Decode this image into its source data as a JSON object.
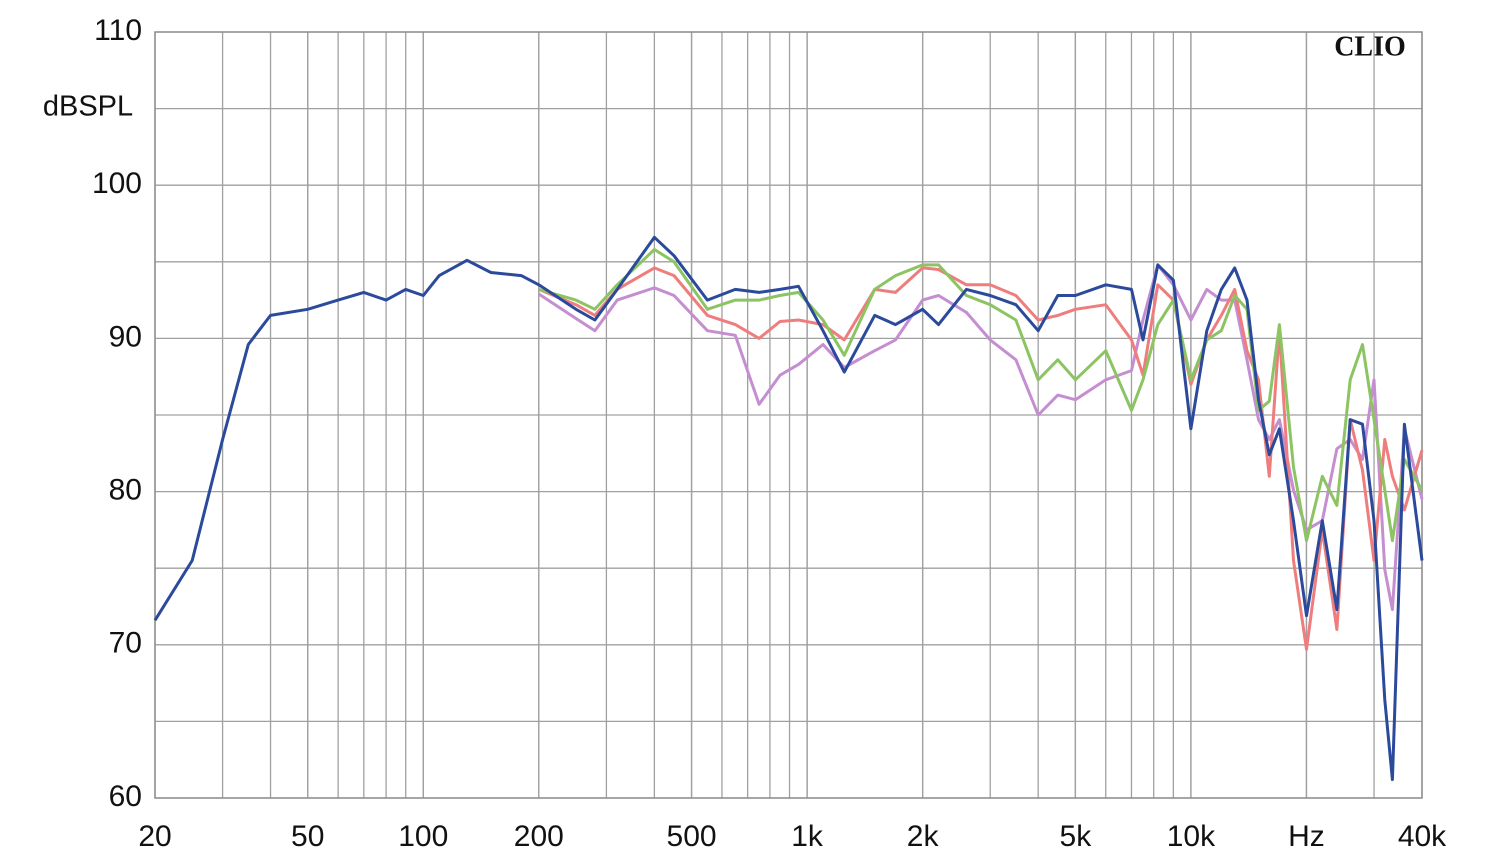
{
  "chart_data": {
    "type": "line",
    "y_label": "dBSPL",
    "annotation": "CLIO",
    "x": [
      20,
      25,
      30,
      35,
      40,
      50,
      60,
      70,
      80,
      90,
      100,
      110,
      130,
      150,
      180,
      200,
      250,
      280,
      320,
      400,
      450,
      550,
      650,
      750,
      850,
      950,
      1100,
      1250,
      1500,
      1700,
      2000,
      2200,
      2600,
      3000,
      3500,
      4000,
      4500,
      5000,
      6000,
      7000,
      7500,
      8200,
      9000,
      10000,
      11000,
      12000,
      13000,
      14000,
      15000,
      16000,
      17000,
      18500,
      20000,
      22000,
      24000,
      26000,
      28000,
      30000,
      32000,
      33500,
      36000,
      40000
    ],
    "series": [
      {
        "color": "#c58ed1",
        "values": [
          null,
          null,
          null,
          null,
          null,
          null,
          null,
          null,
          null,
          null,
          null,
          null,
          null,
          null,
          null,
          92.9,
          91.3,
          90.5,
          92.5,
          93.3,
          92.8,
          90.5,
          90.2,
          85.7,
          87.6,
          88.3,
          89.6,
          88.1,
          89.2,
          89.9,
          92.5,
          92.8,
          91.7,
          89.9,
          88.6,
          85.0,
          86.3,
          86.0,
          87.3,
          87.9,
          91.2,
          94.8,
          93.5,
          91.2,
          93.2,
          92.5,
          92.5,
          88.6,
          84.7,
          83.4,
          84.7,
          80.1,
          77.5,
          78.1,
          82.8,
          83.4,
          82.1,
          87.3,
          74.9,
          72.3,
          84.1,
          79.5
        ]
      },
      {
        "color": "#ef7d7d",
        "values": [
          null,
          null,
          null,
          null,
          null,
          null,
          null,
          null,
          null,
          null,
          null,
          null,
          null,
          null,
          null,
          93.2,
          92.2,
          91.5,
          93.2,
          94.6,
          94.1,
          91.5,
          90.9,
          90.0,
          91.1,
          91.2,
          90.9,
          89.9,
          93.2,
          93.0,
          94.6,
          94.5,
          93.5,
          93.5,
          92.8,
          91.2,
          91.5,
          91.9,
          92.2,
          89.9,
          87.6,
          93.5,
          92.5,
          87.0,
          89.9,
          91.5,
          93.2,
          89.2,
          87.3,
          81.0,
          90.5,
          75.5,
          69.7,
          77.5,
          71.0,
          84.7,
          81.4,
          75.5,
          83.4,
          81.0,
          78.8,
          82.7
        ]
      },
      {
        "color": "#8cc463",
        "values": [
          null,
          null,
          null,
          null,
          null,
          null,
          null,
          null,
          null,
          null,
          null,
          null,
          null,
          null,
          null,
          93.2,
          92.5,
          91.9,
          93.5,
          95.8,
          95.0,
          91.9,
          92.5,
          92.5,
          92.8,
          93.0,
          91.2,
          88.9,
          93.2,
          94.1,
          94.8,
          94.8,
          92.8,
          92.2,
          91.2,
          87.3,
          88.6,
          87.3,
          89.2,
          85.3,
          87.3,
          90.9,
          92.5,
          87.3,
          89.9,
          90.5,
          92.8,
          91.9,
          85.3,
          85.9,
          90.9,
          81.6,
          76.8,
          81.0,
          79.1,
          87.3,
          89.6,
          84.7,
          80.1,
          76.8,
          82.1,
          80.1
        ]
      },
      {
        "color": "#2b4a9c",
        "values": [
          71.6,
          75.5,
          83.4,
          89.6,
          91.5,
          91.9,
          92.5,
          93.0,
          92.5,
          93.2,
          92.8,
          94.1,
          95.1,
          94.3,
          94.1,
          93.5,
          91.9,
          91.2,
          93.2,
          96.6,
          95.4,
          92.5,
          93.2,
          93.0,
          93.2,
          93.4,
          90.5,
          87.8,
          91.5,
          90.9,
          91.9,
          90.9,
          93.2,
          92.8,
          92.2,
          90.5,
          92.8,
          92.8,
          93.5,
          93.2,
          89.9,
          94.8,
          93.8,
          84.1,
          90.5,
          93.2,
          94.6,
          92.5,
          86.0,
          82.4,
          84.1,
          78.1,
          71.9,
          78.1,
          72.3,
          84.7,
          84.4,
          78.1,
          66.4,
          61.2,
          84.4,
          75.5
        ]
      }
    ],
    "xlim": [
      20,
      40000
    ],
    "log_x": true,
    "xticks": [
      20,
      50,
      100,
      200,
      500,
      {
        "value": 1000,
        "label": "1k"
      },
      {
        "value": 2000,
        "label": "2k"
      },
      {
        "value": 5000,
        "label": "5k"
      },
      {
        "value": 10000,
        "label": "10k"
      },
      {
        "value": 20000,
        "label": "Hz"
      },
      {
        "value": 40000,
        "label": "40k"
      }
    ],
    "ylim": [
      60,
      110
    ],
    "yticks": [
      60,
      70,
      80,
      90,
      100,
      110
    ],
    "grid": true
  }
}
